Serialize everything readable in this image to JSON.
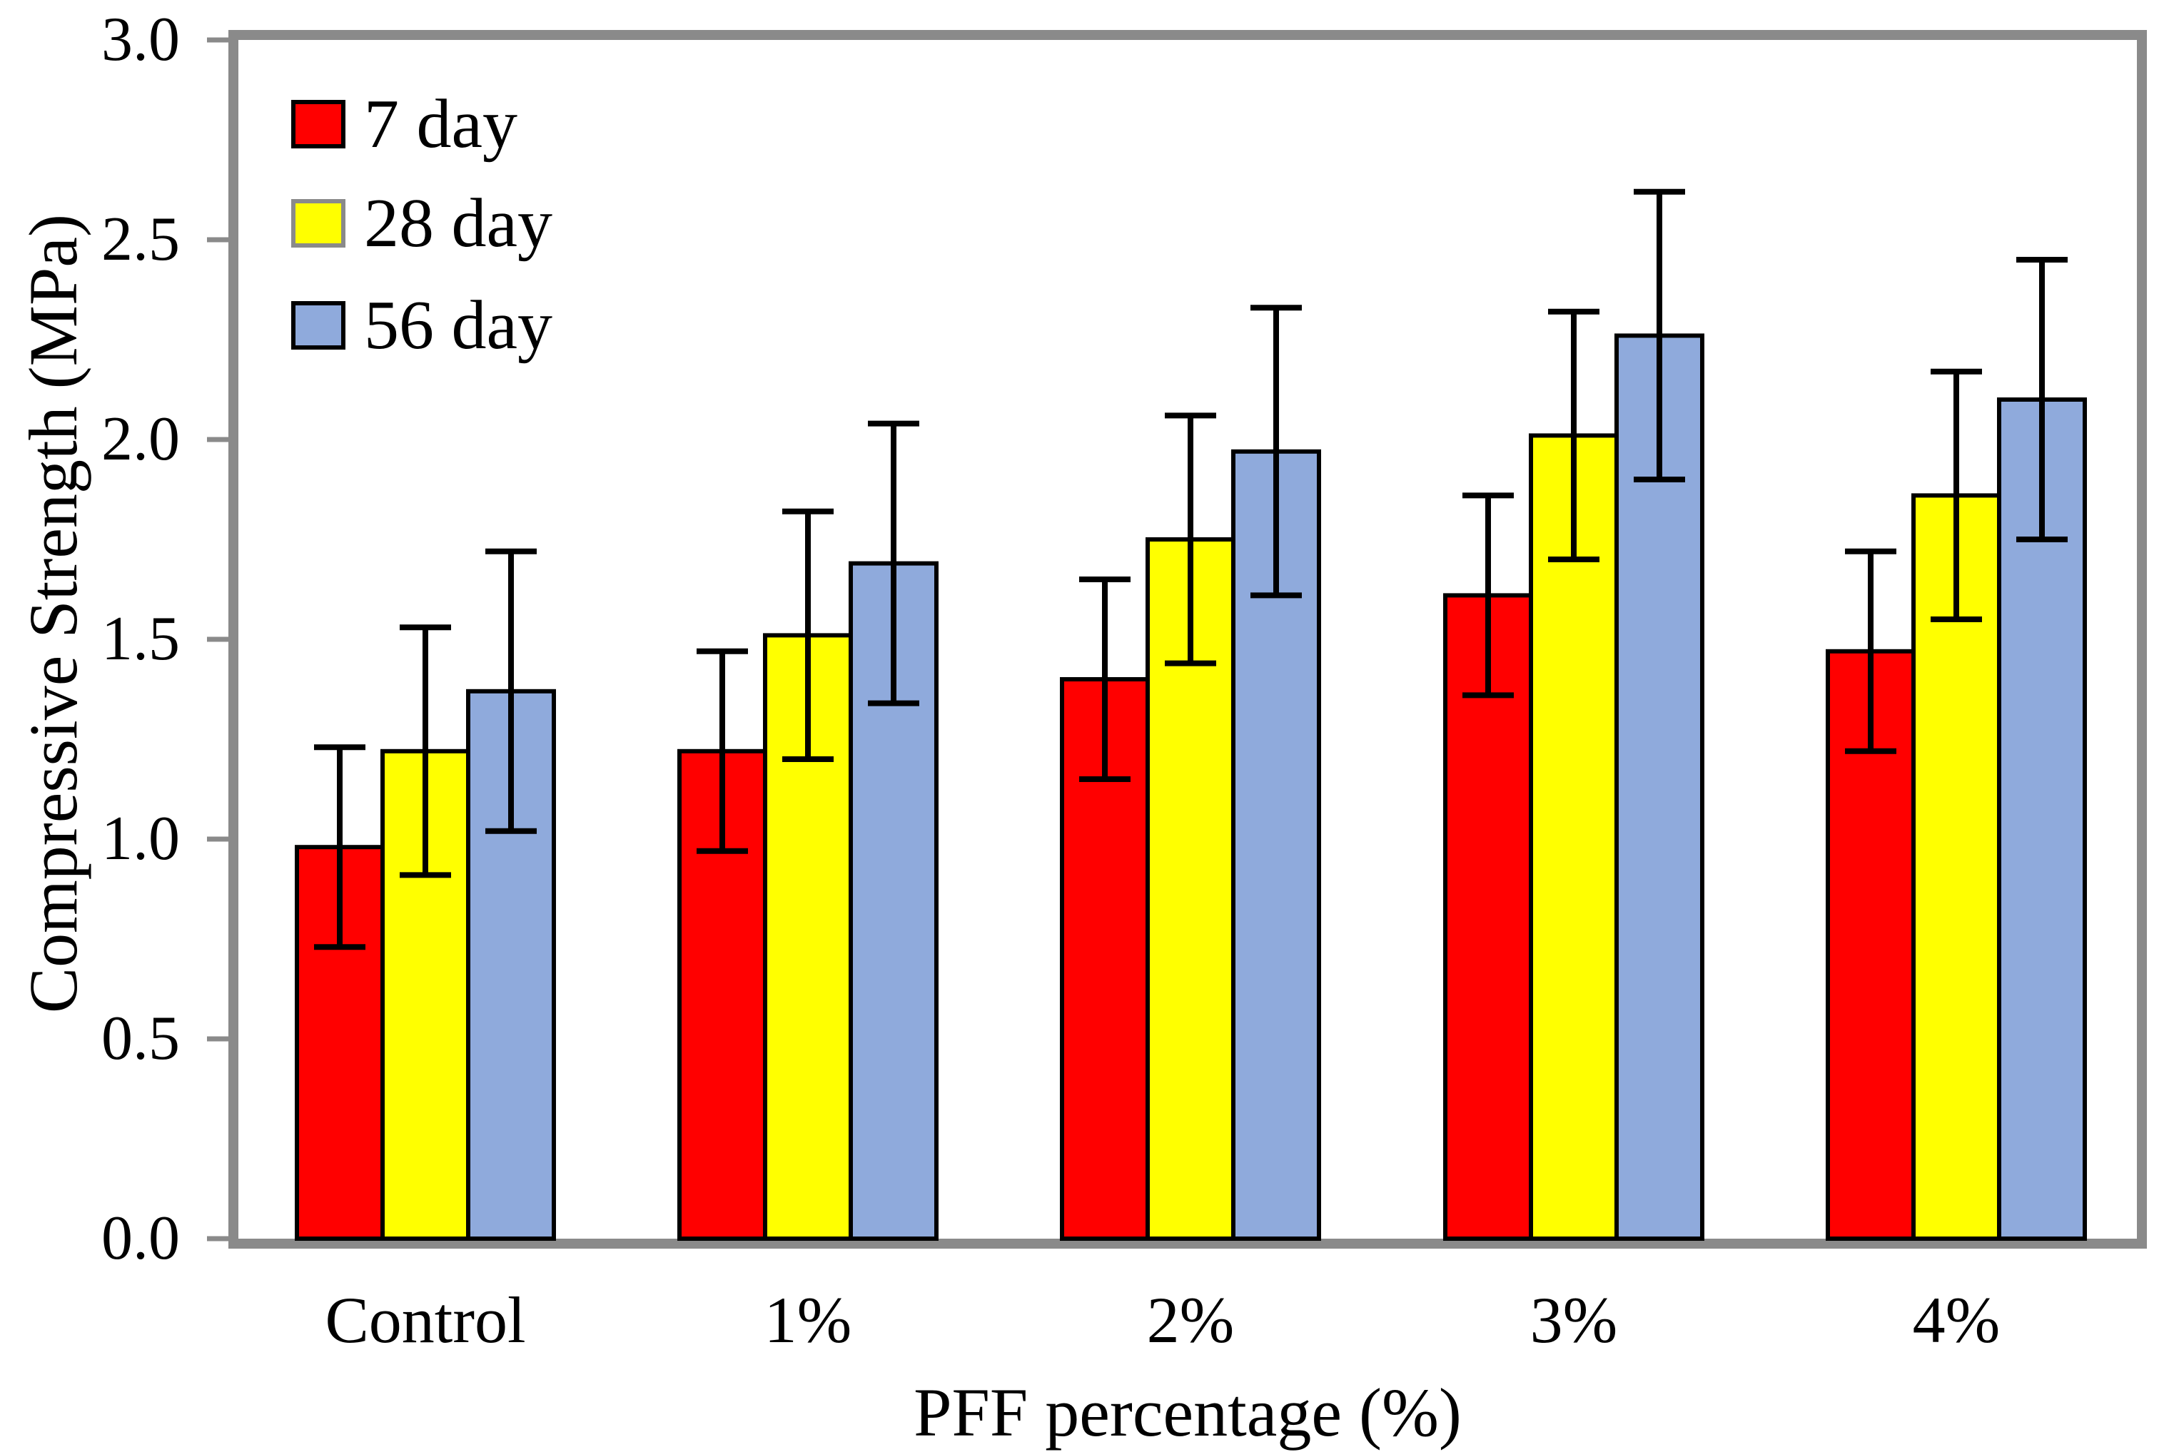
{
  "chart_data": {
    "type": "bar",
    "title": "",
    "ylabel": "Compressive Strength (MPa)",
    "xlabel": "PFF percentage (%)",
    "categories": [
      "Control",
      "1%",
      "2%",
      "3%",
      "4%"
    ],
    "ylim": [
      0.0,
      3.0
    ],
    "ytick_step": 0.5,
    "ytick_labels": [
      "3.0",
      "2.5",
      "2.0",
      "1.5",
      "1.0",
      "0.5",
      "0.0"
    ],
    "grid": false,
    "legend": {
      "position": "top-left-inside"
    },
    "series": [
      {
        "name": "7 day",
        "color": "#FF0000",
        "swatch_border": "#000000",
        "values": [
          0.98,
          1.22,
          1.4,
          1.61,
          1.47
        ],
        "errors": [
          0.25,
          0.25,
          0.25,
          0.25,
          0.25
        ]
      },
      {
        "name": "28 day",
        "color": "#FFFF00",
        "swatch_border": "#8a8a8a",
        "values": [
          1.22,
          1.51,
          1.75,
          2.01,
          1.86
        ],
        "errors": [
          0.31,
          0.31,
          0.31,
          0.31,
          0.31
        ]
      },
      {
        "name": "56 day",
        "color": "#8FAADC",
        "swatch_border": "#000000",
        "values": [
          1.37,
          1.69,
          1.97,
          2.26,
          2.1
        ],
        "errors": [
          0.35,
          0.35,
          0.36,
          0.36,
          0.35
        ]
      }
    ],
    "colors": {
      "frame": "#8a8a8a",
      "bar_border": "#000000",
      "error_bar": "#000000",
      "background": "#ffffff"
    }
  }
}
